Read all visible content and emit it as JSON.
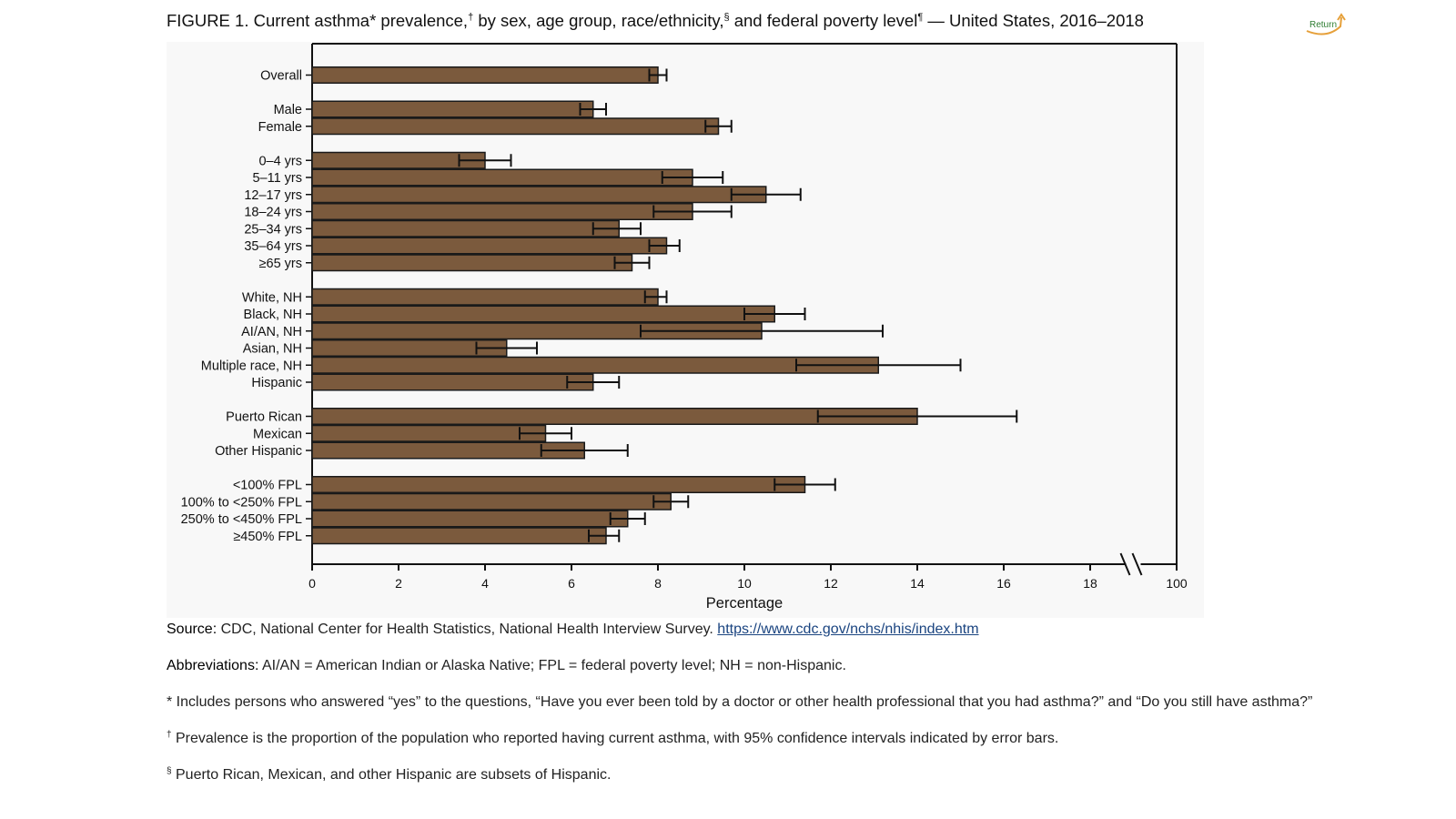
{
  "title": {
    "p1": "FIGURE 1. Current asthma* prevalence,",
    "s1": "†",
    "p2": " by sex, age group, race/ethnicity,",
    "s2": "§",
    "p3": " and federal poverty level",
    "s3": "¶",
    "p4": " — United States, 2016–2018"
  },
  "return_label": "Return",
  "colors": {
    "bar": "#7b5a3d",
    "bar_stroke": "#1a1a1a",
    "axis": "#111111",
    "accent_return": "#e6a03a",
    "link": "#1a4480"
  },
  "chart_data": {
    "type": "bar",
    "orientation": "horizontal",
    "xlabel": "Percentage",
    "xlim": [
      0,
      20
    ],
    "xticks": [
      "0",
      "2",
      "4",
      "6",
      "8",
      "10",
      "12",
      "14",
      "16",
      "18",
      "100"
    ],
    "axis_break": "between 18 and 100",
    "grid": false,
    "error_bars": "95% confidence intervals",
    "groups": [
      {
        "items": [
          {
            "label": "Overall",
            "value": 8.0,
            "ci": [
              7.8,
              8.2
            ]
          }
        ]
      },
      {
        "items": [
          {
            "label": "Male",
            "value": 6.5,
            "ci": [
              6.2,
              6.8
            ]
          },
          {
            "label": "Female",
            "value": 9.4,
            "ci": [
              9.1,
              9.7
            ]
          }
        ]
      },
      {
        "items": [
          {
            "label": "0–4 yrs",
            "value": 4.0,
            "ci": [
              3.4,
              4.6
            ]
          },
          {
            "label": "5–11 yrs",
            "value": 8.8,
            "ci": [
              8.1,
              9.5
            ]
          },
          {
            "label": "12–17 yrs",
            "value": 10.5,
            "ci": [
              9.7,
              11.3
            ]
          },
          {
            "label": "18–24 yrs",
            "value": 8.8,
            "ci": [
              7.9,
              9.7
            ]
          },
          {
            "label": "25–34 yrs",
            "value": 7.1,
            "ci": [
              6.5,
              7.6
            ]
          },
          {
            "label": "35–64 yrs",
            "value": 8.2,
            "ci": [
              7.8,
              8.5
            ]
          },
          {
            "label": "≥65 yrs",
            "value": 7.4,
            "ci": [
              7.0,
              7.8
            ]
          }
        ]
      },
      {
        "items": [
          {
            "label": "White, NH",
            "value": 8.0,
            "ci": [
              7.7,
              8.2
            ]
          },
          {
            "label": "Black, NH",
            "value": 10.7,
            "ci": [
              10.0,
              11.4
            ]
          },
          {
            "label": "AI/AN, NH",
            "value": 10.4,
            "ci": [
              7.6,
              13.2
            ]
          },
          {
            "label": "Asian, NH",
            "value": 4.5,
            "ci": [
              3.8,
              5.2
            ]
          },
          {
            "label": "Multiple race, NH",
            "value": 13.1,
            "ci": [
              11.2,
              15.0
            ]
          },
          {
            "label": "Hispanic",
            "value": 6.5,
            "ci": [
              5.9,
              7.1
            ]
          }
        ]
      },
      {
        "items": [
          {
            "label": "Puerto Rican",
            "value": 14.0,
            "ci": [
              11.7,
              16.3
            ]
          },
          {
            "label": "Mexican",
            "value": 5.4,
            "ci": [
              4.8,
              6.0
            ]
          },
          {
            "label": "Other Hispanic",
            "value": 6.3,
            "ci": [
              5.3,
              7.3
            ]
          }
        ]
      },
      {
        "items": [
          {
            "label": "<100% FPL",
            "value": 11.4,
            "ci": [
              10.7,
              12.1
            ]
          },
          {
            "label": "100% to <250% FPL",
            "value": 8.3,
            "ci": [
              7.9,
              8.7
            ]
          },
          {
            "label": "250% to <450% FPL",
            "value": 7.3,
            "ci": [
              6.9,
              7.7
            ]
          },
          {
            "label": "≥450% FPL",
            "value": 6.8,
            "ci": [
              6.4,
              7.1
            ]
          }
        ]
      }
    ]
  },
  "notes": {
    "source_label": "Source:",
    "source_text": " CDC, National Center for Health Statistics, National Health Interview Survey. ",
    "source_link": "https://www.cdc.gov/nchs/nhis/index.htm",
    "abbr_label": "Abbreviations:",
    "abbr_text": " AI/AN = American Indian or Alaska Native; FPL = federal poverty level; NH = non-Hispanic.",
    "fn1": "* Includes persons who answered “yes” to the questions, “Have you ever been told by a doctor or other health professional that you had asthma?” and “Do you still have asthma?”",
    "fn2_mark": "†",
    "fn2": " Prevalence is the proportion of the population who reported having current asthma, with 95% confidence intervals indicated by error bars.",
    "fn3_mark": "§",
    "fn3": " Puerto Rican, Mexican, and other Hispanic are subsets of Hispanic."
  }
}
